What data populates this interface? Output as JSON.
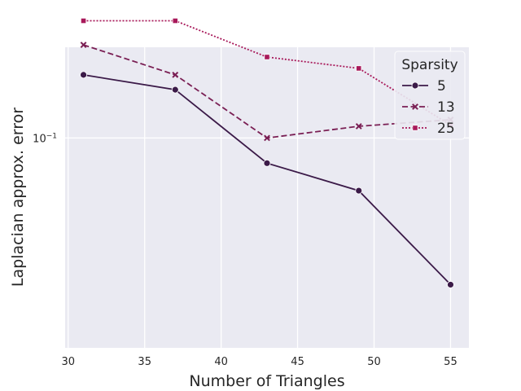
{
  "chart_data": {
    "type": "line",
    "title": "",
    "xlabel": "Number of Triangles",
    "ylabel": "Laplacian approx. error",
    "xlim": [
      29.8,
      56.2
    ],
    "ylim_log10": [
      -1.74,
      -0.68
    ],
    "yscale": "log",
    "x_ticks": [
      30,
      35,
      40,
      45,
      50,
      55
    ],
    "x_tick_labels": [
      "30",
      "35",
      "40",
      "45",
      "50",
      "55"
    ],
    "y_tick_label": {
      "base": "10",
      "exponent": "−1",
      "value": 0.1
    },
    "x": [
      31,
      37,
      43,
      49,
      55
    ],
    "grid": true,
    "background": "#eaeaf2",
    "legend": {
      "title": "Sparsity",
      "placement": "top-right"
    },
    "series": [
      {
        "name": "5",
        "color": "#3b1a48",
        "marker": "circle",
        "dash": "solid",
        "values": [
          0.167,
          0.148,
          0.0815,
          0.0652,
          0.0304
        ]
      },
      {
        "name": "13",
        "color": "#7a1f54",
        "marker": "x",
        "dash": "dashed",
        "values": [
          0.213,
          0.167,
          0.1,
          0.11,
          0.116
        ]
      },
      {
        "name": "25",
        "color": "#a8195a",
        "marker": "square",
        "dash": "dotted",
        "values": [
          0.259,
          0.259,
          0.193,
          0.176,
          0.111
        ]
      }
    ]
  }
}
